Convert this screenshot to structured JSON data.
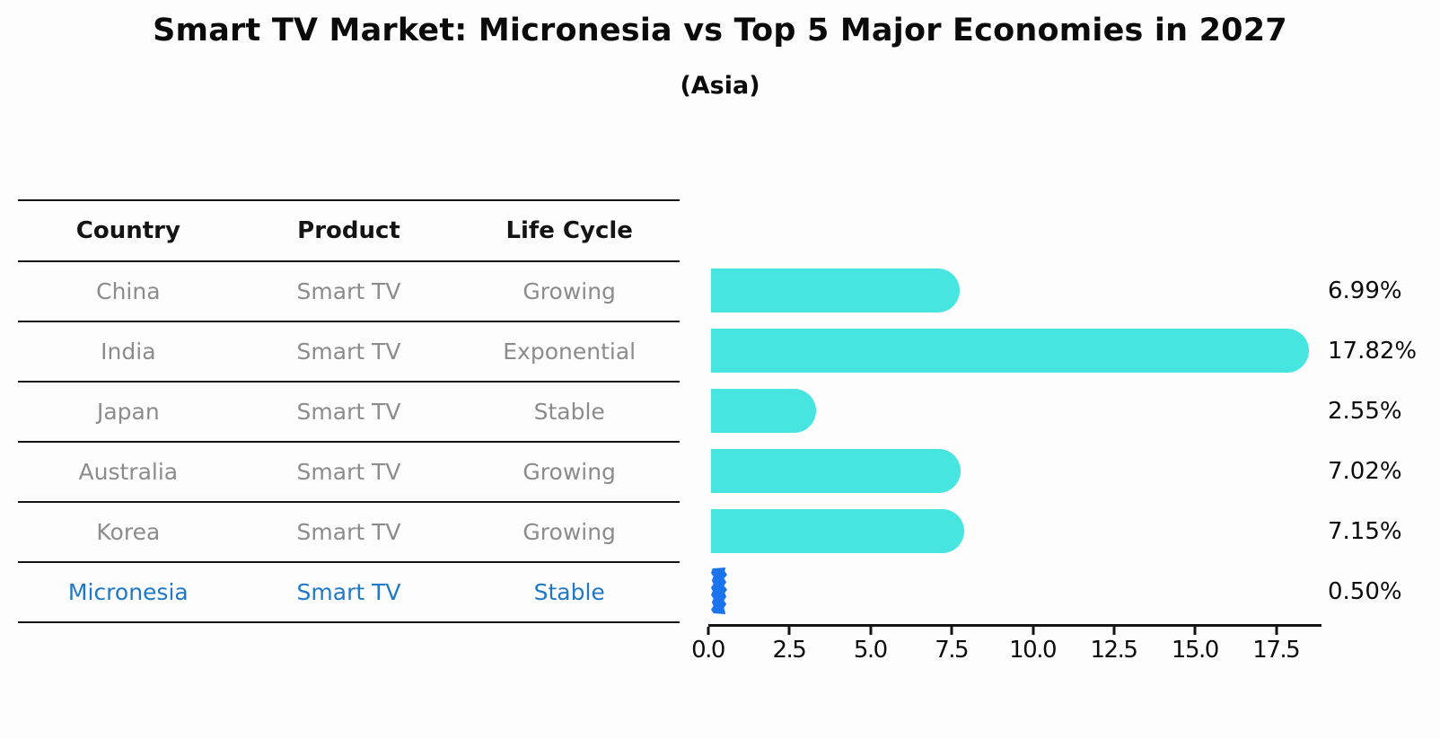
{
  "title": "Smart TV Market: Micronesia vs Top 5 Major Economies in 2027",
  "subtitle": "(Asia)",
  "table": {
    "headers": [
      "Country",
      "Product",
      "Life Cycle"
    ],
    "rows": [
      {
        "country": "China",
        "product": "Smart TV",
        "life_cycle": "Growing"
      },
      {
        "country": "India",
        "product": "Smart TV",
        "life_cycle": "Exponential"
      },
      {
        "country": "Japan",
        "product": "Smart TV",
        "life_cycle": "Stable"
      },
      {
        "country": "Australia",
        "product": "Smart TV",
        "life_cycle": "Growing"
      },
      {
        "country": "Korea",
        "product": "Smart TV",
        "life_cycle": "Growing"
      },
      {
        "country": "Micronesia",
        "product": "Smart TV",
        "life_cycle": "Stable"
      }
    ]
  },
  "chart_data": {
    "type": "bar",
    "orientation": "horizontal",
    "title": "Smart TV Market: Micronesia vs Top 5 Major Economies in 2027",
    "subtitle": "(Asia)",
    "categories": [
      "China",
      "India",
      "Japan",
      "Australia",
      "Korea",
      "Micronesia"
    ],
    "values": [
      6.99,
      17.82,
      2.55,
      7.02,
      7.15,
      0.5
    ],
    "value_labels": [
      "6.99%",
      "17.82%",
      "2.55%",
      "7.02%",
      "7.15%",
      "0.50%"
    ],
    "highlight_category": "Micronesia",
    "x_tick_values": [
      0,
      2.5,
      5,
      7.5,
      10,
      12.5,
      15,
      17.5
    ],
    "x_tick_labels": [
      "0.0",
      "2.5",
      "5.0",
      "7.5",
      "10.0",
      "12.5",
      "15.0",
      "17.5"
    ],
    "xlim": [
      0,
      18.89
    ],
    "grid": false,
    "legend": null,
    "colors": {
      "bar": "#46e5e0",
      "highlight_bar": "#1b74ee",
      "highlight_text": "#1f78c8",
      "row_text": "#8c8c8c",
      "axis": "#141414"
    }
  }
}
